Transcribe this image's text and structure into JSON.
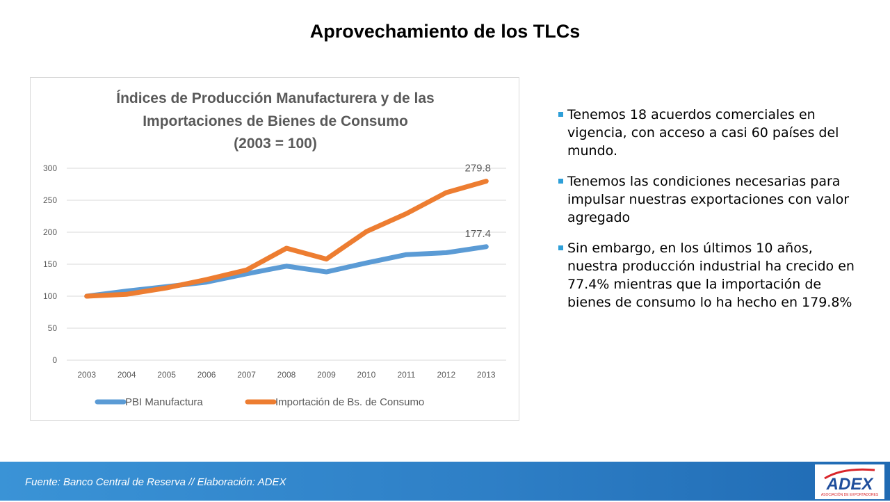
{
  "slide": {
    "title": "Aprovechamiento de los TLCs"
  },
  "chart_data": {
    "type": "line",
    "title_lines": [
      "Índices de Producción Manufacturera y de las",
      "Importaciones de Bienes de Consumo",
      "(2003 = 100)"
    ],
    "categories": [
      "2003",
      "2004",
      "2005",
      "2006",
      "2007",
      "2008",
      "2009",
      "2010",
      "2011",
      "2012",
      "2013"
    ],
    "ylim": [
      0,
      300
    ],
    "yticks": [
      0,
      50,
      100,
      150,
      200,
      250,
      300
    ],
    "grid": true,
    "legend_position": "bottom",
    "series": [
      {
        "name": "PBI Manufactura",
        "color": "#5b9bd5",
        "values": [
          100,
          108,
          115,
          122,
          135,
          147,
          138,
          152,
          165,
          168,
          177.4
        ],
        "end_label": "177.4"
      },
      {
        "name": "Importación de Bs. de Consumo",
        "color": "#ed7d31",
        "values": [
          100,
          103,
          113,
          126,
          141,
          175,
          158,
          201,
          229,
          262,
          279.8
        ],
        "end_label": "279.8"
      }
    ]
  },
  "bullets": [
    "Tenemos 18 acuerdos comerciales en vigencia, con acceso a casi 60 países del mundo.",
    "Tenemos las condiciones necesarias para impulsar nuestras exportaciones con valor agregado",
    "Sin embargo, en los últimos 10 años, nuestra producción industrial ha crecido en 77.4% mientras que la importación de bienes de consumo lo ha hecho en 179.8%"
  ],
  "footer": {
    "source": "Fuente: Banco Central de Reserva // Elaboración: ADEX",
    "logo_text": "ADEX",
    "logo_subtext": "ASOCIACIÓN DE EXPORTADORES",
    "bar_color": "#2e7fc6",
    "logo_red": "#d9252a",
    "logo_blue": "#1f4e9c"
  },
  "colors": {
    "bullet_marker": "#2e9fd8",
    "gridline": "#d9d9d9",
    "axis_text": "#595959"
  }
}
